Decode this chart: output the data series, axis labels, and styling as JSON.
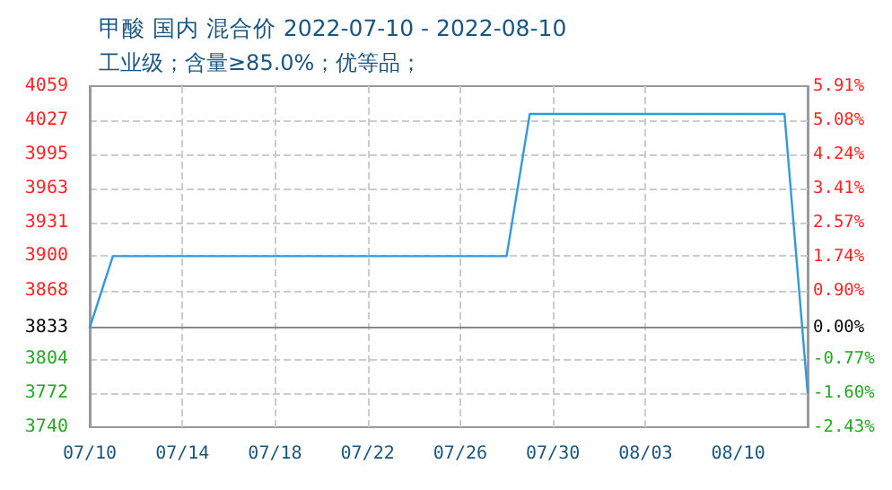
{
  "chart_data": {
    "type": "line",
    "title": "甲酸 国内 混合价 2022-07-10 - 2022-08-10",
    "subtitle": "工业级；含量≥85.0%；优等品；",
    "x": [
      "2022-07-10",
      "2022-07-11",
      "2022-07-28",
      "2022-07-29",
      "2022-08-09",
      "2022-08-10"
    ],
    "series": [
      {
        "color": "#3399dd",
        "values": [
          3833,
          3900,
          3900,
          4033,
          4033,
          3772
        ]
      }
    ],
    "xlim": [
      "2022-07-10",
      "2022-08-10"
    ],
    "xticks": [
      {
        "value": "2022-07-10",
        "label": "07/10"
      },
      {
        "value": "2022-07-14",
        "label": "07/14"
      },
      {
        "value": "2022-07-18",
        "label": "07/18"
      },
      {
        "value": "2022-07-22",
        "label": "07/22"
      },
      {
        "value": "2022-07-26",
        "label": "07/26"
      },
      {
        "value": "2022-07-30",
        "label": "07/30"
      },
      {
        "value": "2022-08-03",
        "label": "08/03"
      },
      {
        "value": "2022-08-07",
        "label": "08/10"
      }
    ],
    "ylim": [
      3740,
      4059
    ],
    "yticks": [
      3740,
      3772,
      3804,
      3833,
      3868,
      3900,
      3931,
      3963,
      3995,
      4027,
      4059
    ],
    "y2lim": [
      -2.43,
      5.91
    ],
    "y2ticks": [
      {
        "value": -2.43,
        "label": "-2.43%"
      },
      {
        "value": -1.6,
        "label": "-1.60%"
      },
      {
        "value": -0.77,
        "label": "-0.77%"
      },
      {
        "value": 0,
        "label": "0.00%"
      },
      {
        "value": 0.9,
        "label": "0.90%"
      },
      {
        "value": 1.74,
        "label": "1.74%"
      },
      {
        "value": 2.57,
        "label": "2.57%"
      },
      {
        "value": 3.41,
        "label": "3.41%"
      },
      {
        "value": 4.24,
        "label": "4.24%"
      },
      {
        "value": 5.08,
        "label": "5.08%"
      },
      {
        "value": 5.91,
        "label": "5.91%"
      }
    ],
    "ref_lines": [
      {
        "axis": "y",
        "value": 3833,
        "color": "#888888"
      }
    ],
    "grid": true,
    "marker": "none",
    "line_style": "solid"
  }
}
